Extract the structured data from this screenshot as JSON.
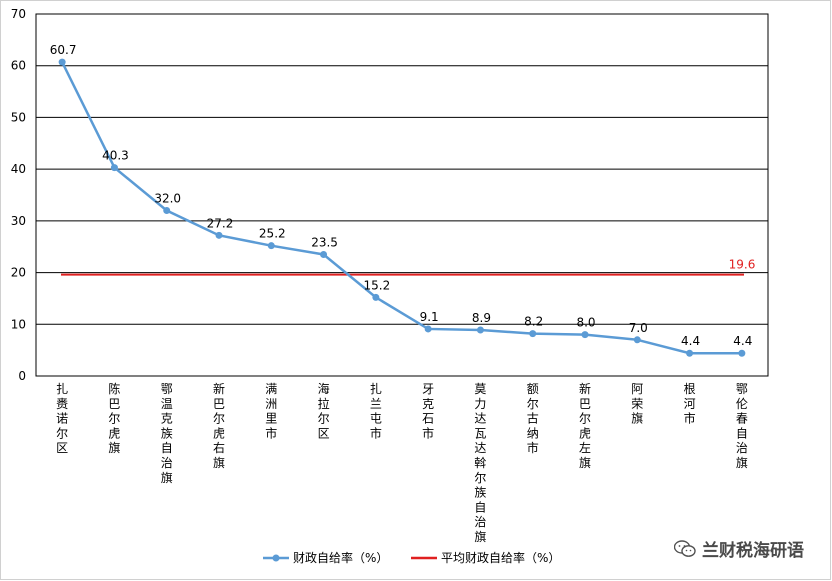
{
  "chart_data": {
    "type": "line",
    "categories": [
      "扎赉诺尔区",
      "陈巴尔虎旗",
      "鄂温克族自治旗",
      "新巴尔虎右旗",
      "满洲里市",
      "海拉尔区",
      "扎兰屯市",
      "牙克石市",
      "莫力达瓦达斡尔族自治旗",
      "额尔古纳市",
      "新巴尔虎左旗",
      "阿荣旗",
      "根河市",
      "鄂伦春自治旗"
    ],
    "series": [
      {
        "name": "财政自给率（%）",
        "values": [
          60.7,
          40.3,
          32.0,
          27.2,
          25.2,
          23.5,
          15.2,
          9.1,
          8.9,
          8.2,
          8.0,
          7.0,
          4.4,
          4.4
        ],
        "color": "#5b9bd5"
      },
      {
        "name": "平均财政自给率（%）",
        "values": [
          19.6,
          19.6,
          19.6,
          19.6,
          19.6,
          19.6,
          19.6,
          19.6,
          19.6,
          19.6,
          19.6,
          19.6,
          19.6,
          19.6
        ],
        "color": "#e02020"
      }
    ],
    "data_labels": [
      "60.7",
      "40.3",
      "32.0",
      "27.2",
      "25.2",
      "23.5",
      "15.2",
      "9.1",
      "8.9",
      "8.2",
      "8.0",
      "7.0",
      "4.4",
      "4.4"
    ],
    "average_label": "19.6",
    "yticks": [
      "0",
      "10",
      "20",
      "30",
      "40",
      "50",
      "60",
      "70"
    ],
    "ylim": [
      0,
      70
    ],
    "grid": true,
    "legend_position": "bottom",
    "title": "",
    "xlabel": "",
    "ylabel": ""
  },
  "watermark": {
    "text": "兰财税海研语",
    "icon": "wechat-icon"
  }
}
